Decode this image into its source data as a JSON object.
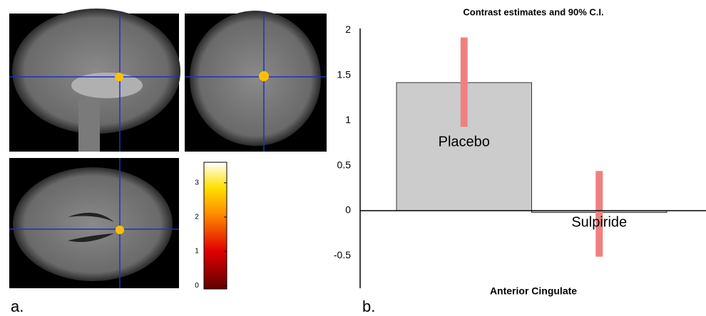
{
  "panel_labels": [
    "a.",
    "b."
  ],
  "colorbar": {
    "ticks": [
      0,
      1,
      2,
      3
    ],
    "lim": [
      -0.1,
      3.6
    ]
  },
  "chart_data": {
    "type": "bar",
    "title": "Contrast estimates and 90% C.I.",
    "xlabel": "Anterior Cingulate",
    "categories": [
      "Placebo",
      "Sulpiride"
    ],
    "values": [
      1.42,
      -0.02
    ],
    "ci": [
      [
        0.93,
        1.92
      ],
      [
        -0.51,
        0.44
      ]
    ],
    "color": "#cccccc",
    "ci_color": "#f08080",
    "ylim": [
      -0.86,
      2.02
    ],
    "yticks": [
      -0.5,
      0,
      0.5,
      1,
      1.5,
      2
    ]
  }
}
